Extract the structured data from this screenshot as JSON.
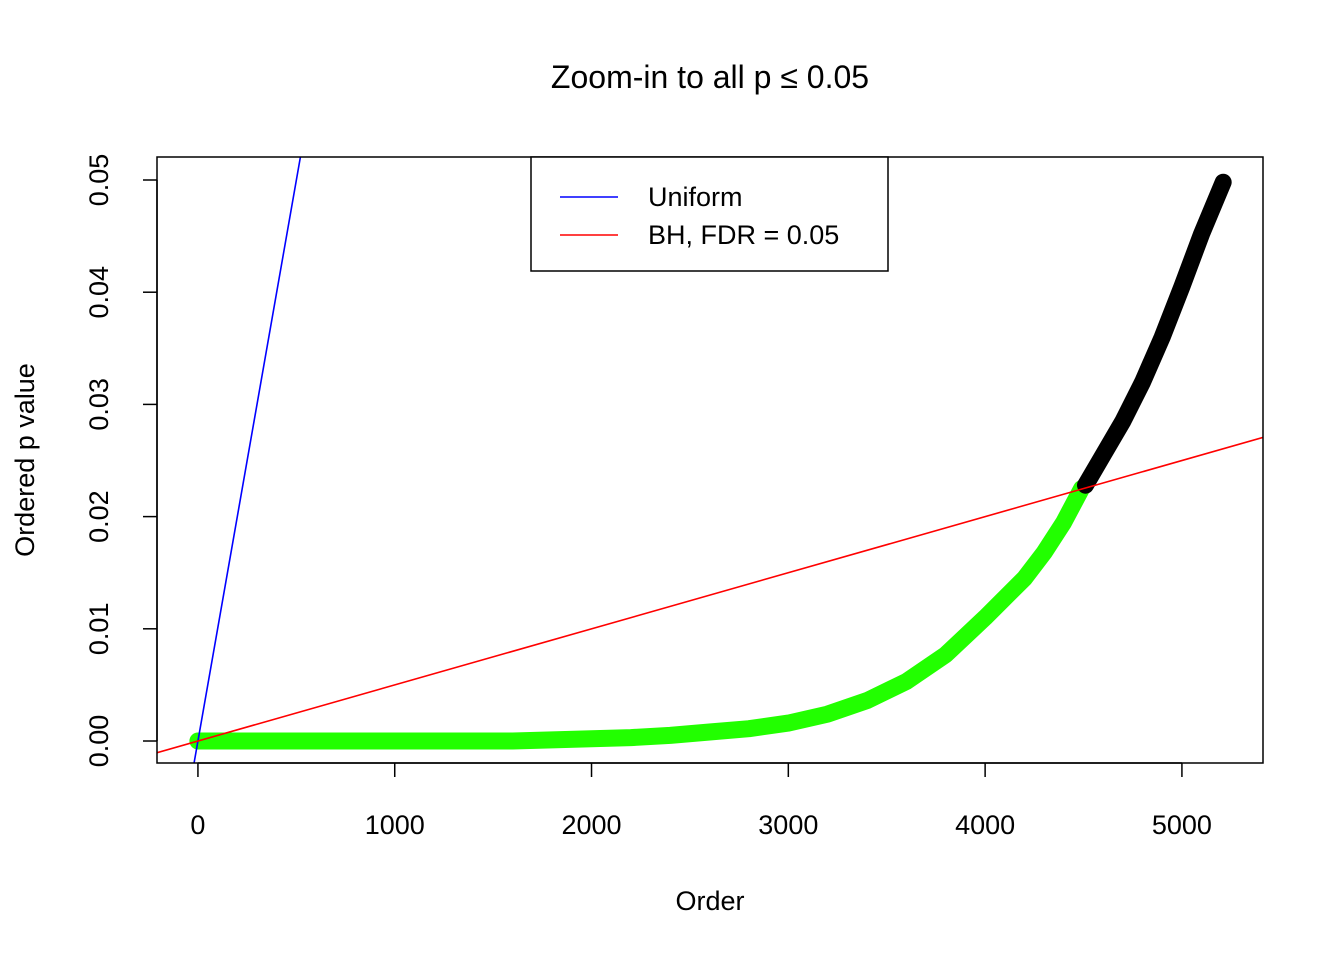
{
  "chart_data": {
    "type": "line",
    "title": "Zoom-in to all p ≤ 0.05",
    "x_label": "Order",
    "y_label": "Ordered p value",
    "xlim": [
      -208,
      5412
    ],
    "ylim": [
      -0.00196,
      0.05205
    ],
    "xticks": [
      0,
      1000,
      2000,
      3000,
      4000,
      5000
    ],
    "yticks": [
      {
        "value": 0,
        "label": "0.00"
      },
      0.01,
      0.02,
      0.03,
      0.04,
      0.05
    ],
    "legend": "top",
    "series": [
      {
        "color": "#22ff00",
        "x": [
          0,
          200,
          400,
          600,
          800,
          1000,
          1200,
          1400,
          1600,
          1800,
          2000,
          2200,
          2400,
          2600,
          2800,
          3000,
          3200,
          3400,
          3600,
          3800,
          4000,
          4200,
          4300,
          4400,
          4490
        ],
        "values": [
          0,
          0,
          0,
          0,
          0,
          0,
          0,
          0,
          0,
          0.0001,
          0.0002,
          0.0003,
          0.0005,
          0.0008,
          0.0011,
          0.0016,
          0.0024,
          0.0036,
          0.0053,
          0.0077,
          0.011,
          0.0145,
          0.0168,
          0.0195,
          0.0225
        ]
      },
      {
        "color": "#000000",
        "x": [
          4510,
          4600,
          4700,
          4800,
          4900,
          5000,
          5100,
          5210
        ],
        "values": [
          0.0228,
          0.0255,
          0.0285,
          0.032,
          0.036,
          0.0405,
          0.0452,
          0.0498
        ]
      },
      {
        "name": "Uniform",
        "color": "#0000ff",
        "x": [
          -20,
          520
        ],
        "values": [
          -0.002,
          0.052
        ]
      },
      {
        "name": "BH, FDR = 0.05",
        "color": "#ff0000",
        "x": [
          -208,
          5412
        ],
        "values": [
          -0.00104,
          0.02706
        ]
      }
    ]
  }
}
